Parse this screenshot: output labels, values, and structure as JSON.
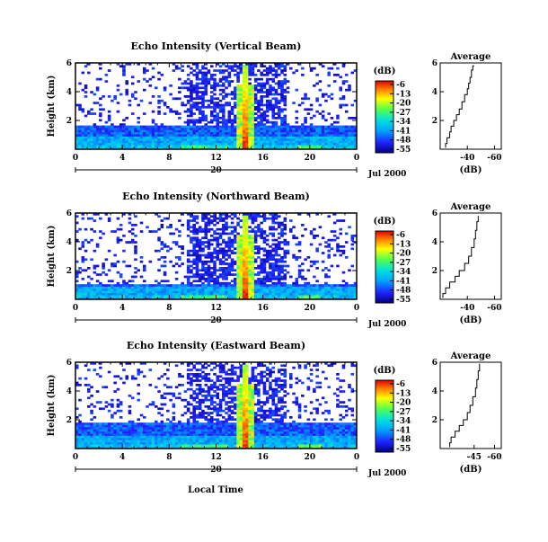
{
  "chart_data": [
    {
      "type": "heatmap",
      "title": "Echo Intensity (Vertical Beam)",
      "ylabel": "Height (km)",
      "xticks": [
        "0",
        "4",
        "8",
        "12",
        "16",
        "20",
        "0"
      ],
      "yticks": [
        "2",
        "4",
        "6"
      ],
      "date_day": "20",
      "date_label": "Jul 2000",
      "xlim": [
        0,
        24
      ],
      "ylim": [
        0,
        6
      ],
      "colorbar": {
        "unit": "(dB)",
        "labels": [
          "-6",
          "-13",
          "-20",
          "-27",
          "-34",
          "-41",
          "-48",
          "-55"
        ]
      },
      "average": {
        "title": "Average",
        "xlabel": "(dB)",
        "xticks": [
          "-40",
          "-60"
        ],
        "yticks": [
          "2",
          "4",
          "6"
        ],
        "profile": [
          [
            -24,
            0.1
          ],
          [
            -25,
            0.4
          ],
          [
            -27,
            0.8
          ],
          [
            -28,
            1.2
          ],
          [
            -30,
            1.6
          ],
          [
            -32,
            2.0
          ],
          [
            -34,
            2.4
          ],
          [
            -36,
            2.8
          ],
          [
            -38,
            3.3
          ],
          [
            -40,
            3.8
          ],
          [
            -41,
            4.2
          ],
          [
            -42,
            4.6
          ],
          [
            -43,
            5.0
          ],
          [
            -44,
            5.5
          ],
          [
            -45,
            5.8
          ]
        ]
      },
      "features": {
        "low_layer_top_km": 1.6,
        "spike_hour": 14.5
      }
    },
    {
      "type": "heatmap",
      "title": "Echo Intensity (Northward Beam)",
      "ylabel": "Height (km)",
      "xticks": [
        "0",
        "4",
        "8",
        "12",
        "16",
        "20",
        "0"
      ],
      "yticks": [
        "2",
        "4",
        "6"
      ],
      "date_day": "20",
      "date_label": "Jul 2000",
      "xlim": [
        0,
        24
      ],
      "ylim": [
        0,
        6
      ],
      "colorbar": {
        "unit": "(dB)",
        "labels": [
          "-6",
          "-13",
          "-20",
          "-27",
          "-34",
          "-41",
          "-48",
          "-55"
        ]
      },
      "average": {
        "title": "Average",
        "xlabel": "(dB)",
        "xticks": [
          "-40",
          "-60"
        ],
        "yticks": [
          "2",
          "4",
          "6"
        ],
        "profile": [
          [
            -22,
            0.1
          ],
          [
            -24,
            0.4
          ],
          [
            -27,
            0.8
          ],
          [
            -31,
            1.2
          ],
          [
            -34,
            1.6
          ],
          [
            -38,
            2.0
          ],
          [
            -41,
            2.5
          ],
          [
            -43,
            3.0
          ],
          [
            -45,
            3.6
          ],
          [
            -46,
            4.2
          ],
          [
            -47,
            4.8
          ],
          [
            -48,
            5.4
          ],
          [
            -48,
            5.8
          ]
        ]
      },
      "features": {
        "low_layer_top_km": 1.0,
        "spike_hour": 14.5
      }
    },
    {
      "type": "heatmap",
      "title": "Echo Intensity (Eastward Beam)",
      "ylabel": "Height (km)",
      "xticks": [
        "0",
        "4",
        "8",
        "12",
        "16",
        "20",
        "0"
      ],
      "yticks": [
        "2",
        "4",
        "6"
      ],
      "date_day": "20",
      "date_label": "Jul 2000",
      "xlim": [
        0,
        24
      ],
      "ylim": [
        0,
        6
      ],
      "colorbar": {
        "unit": "(dB)",
        "labels": [
          "-6",
          "-13",
          "-20",
          "-27",
          "-34",
          "-41",
          "-48",
          "-55"
        ]
      },
      "average": {
        "title": "Average",
        "xlabel": "(dB)",
        "xticks": [
          "-45",
          "-60"
        ],
        "yticks": [
          "2",
          "4",
          "6"
        ],
        "profile": [
          [
            -27,
            0.1
          ],
          [
            -28,
            0.4
          ],
          [
            -31,
            0.8
          ],
          [
            -34,
            1.2
          ],
          [
            -37,
            1.6
          ],
          [
            -40,
            2.0
          ],
          [
            -42,
            2.5
          ],
          [
            -44,
            3.0
          ],
          [
            -46,
            3.6
          ],
          [
            -47,
            4.2
          ],
          [
            -48,
            4.8
          ],
          [
            -49,
            5.4
          ],
          [
            -49,
            5.9
          ]
        ]
      },
      "features": {
        "low_layer_top_km": 1.8,
        "spike_hour": 14.5
      }
    }
  ],
  "footer": {
    "xlabel": "Local Time"
  }
}
